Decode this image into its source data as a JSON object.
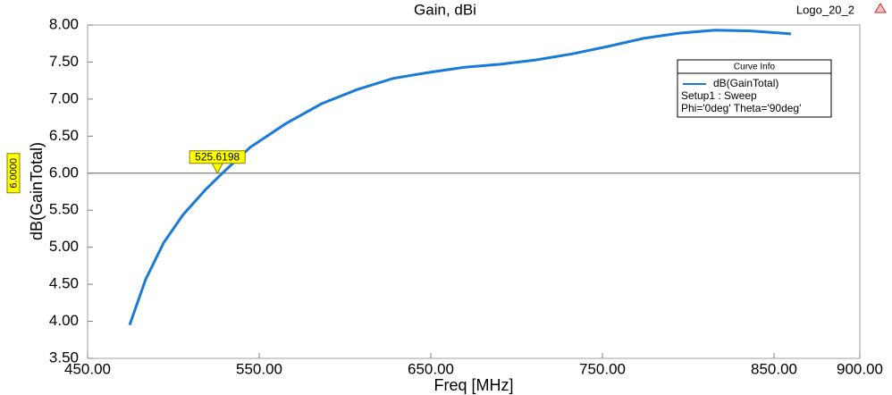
{
  "header": {
    "logo": "Logo_20_2"
  },
  "chart_data": {
    "type": "line",
    "title": "Gain, dBi",
    "x_label": "Freq [MHz]",
    "y_label": "dB(GainTotal)",
    "x": [
      474.5,
      483.9,
      494.3,
      505.7,
      518.8,
      529.0,
      544.8,
      565.6,
      586.5,
      607.3,
      628.1,
      649.0,
      669.8,
      690.6,
      711.5,
      732.3,
      753.1,
      774.0,
      794.8,
      815.6,
      836.5,
      859.9
    ],
    "series": [
      {
        "name": "dB(GainTotal)",
        "color": "#1a7ad8",
        "values": [
          3.95,
          4.57,
          5.06,
          5.44,
          5.78,
          6.01,
          6.35,
          6.67,
          6.94,
          7.13,
          7.28,
          7.36,
          7.43,
          7.47,
          7.53,
          7.61,
          7.71,
          7.82,
          7.89,
          7.93,
          7.92,
          7.88
        ]
      }
    ],
    "xlim": [
      450,
      900
    ],
    "xticks": [
      {
        "value": 450,
        "label": "450.00"
      },
      {
        "value": 550,
        "label": "550.00"
      },
      {
        "value": 650,
        "label": "650.00"
      },
      {
        "value": 750,
        "label": "750.00"
      },
      {
        "value": 850,
        "label": "850.00"
      },
      {
        "value": 900,
        "label": "900.00"
      }
    ],
    "ylim": [
      3.5,
      8
    ],
    "yticks": [
      {
        "value": 3.5,
        "label": "3.50"
      },
      {
        "value": 4,
        "label": "4.00"
      },
      {
        "value": 4.5,
        "label": "4.50"
      },
      {
        "value": 5,
        "label": "5.00"
      },
      {
        "value": 5.5,
        "label": "5.50"
      },
      {
        "value": 6,
        "label": "6.00"
      },
      {
        "value": 6.5,
        "label": "6.50"
      },
      {
        "value": 7,
        "label": "7.00"
      },
      {
        "value": 7.5,
        "label": "7.50"
      },
      {
        "value": 8,
        "label": "8.00"
      }
    ],
    "marker": {
      "x": 525.6198,
      "y": {
        "value": 6,
        "label": "6.0000"
      }
    },
    "legend": {
      "title": "Curve Info",
      "position": "upper right",
      "notes": [
        "Setup1 : Sweep",
        "Phi='0deg' Theta='90deg'"
      ]
    }
  }
}
